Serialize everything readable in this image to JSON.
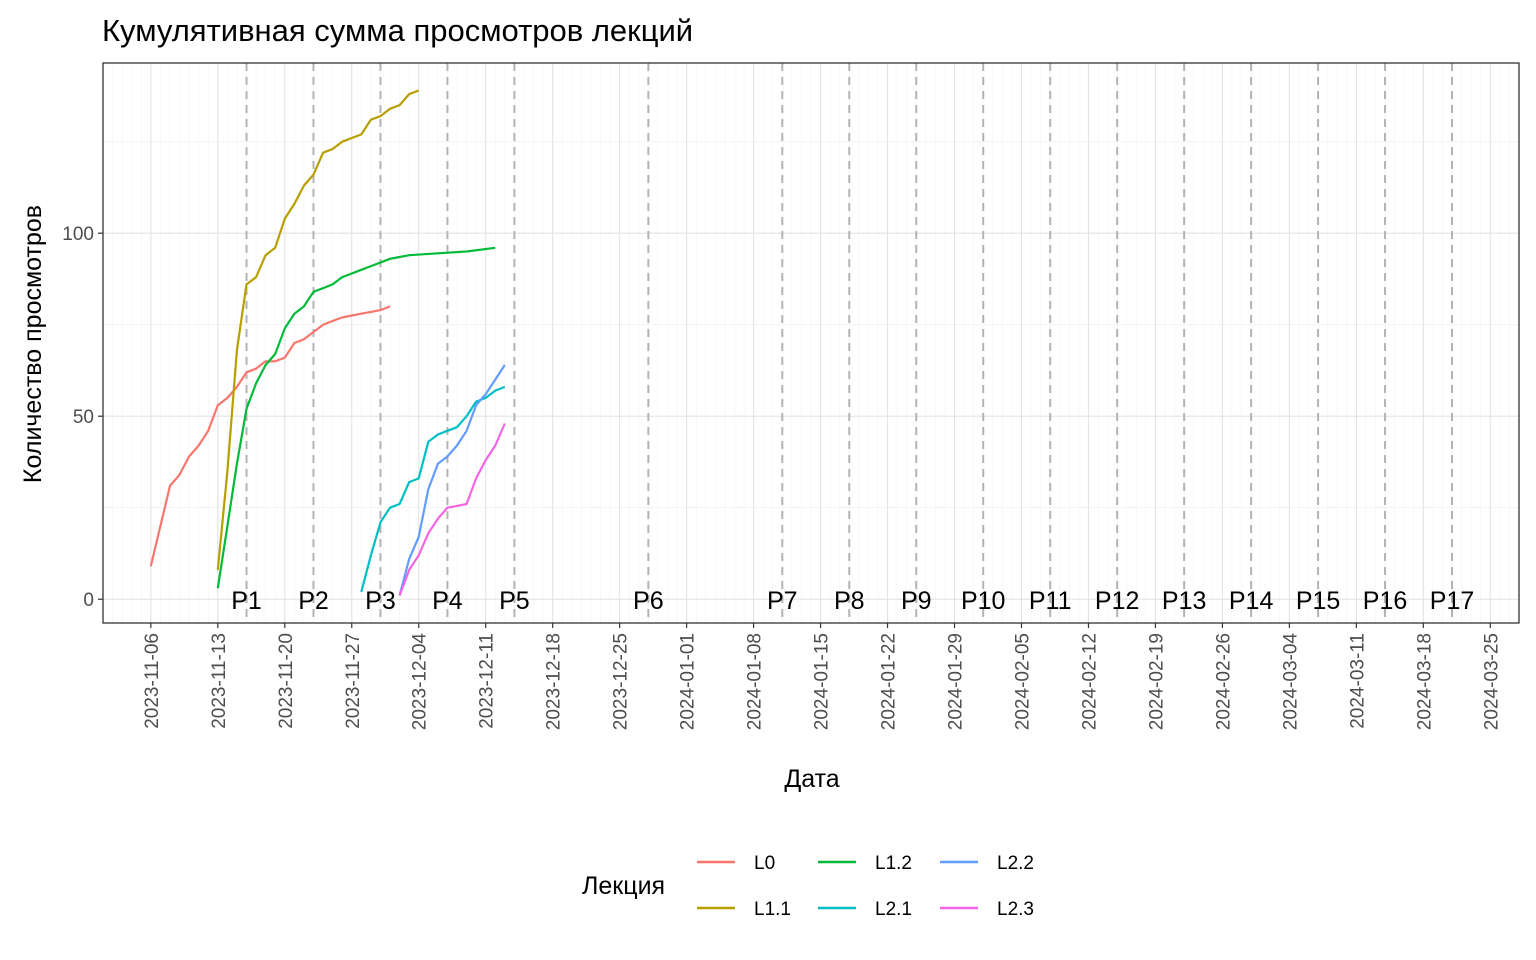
{
  "chart_data": {
    "type": "line",
    "title": "Кумулятивная сумма просмотров лекций",
    "xlabel": "Дата",
    "ylabel": "Количество просмотров",
    "x_range": [
      "2023-11-01",
      "2024-03-28"
    ],
    "ylim": [
      -6.5,
      146.5
    ],
    "y_ticks": [
      0,
      50,
      100
    ],
    "y_minor_ticks": [
      25,
      75,
      125
    ],
    "x_ticks": [
      "2023-11-06",
      "2023-11-13",
      "2023-11-20",
      "2023-11-27",
      "2023-12-04",
      "2023-12-11",
      "2023-12-18",
      "2023-12-25",
      "2024-01-01",
      "2024-01-08",
      "2024-01-15",
      "2024-01-22",
      "2024-01-29",
      "2024-02-05",
      "2024-02-12",
      "2024-02-19",
      "2024-02-26",
      "2024-03-04",
      "2024-03-11",
      "2024-03-18",
      "2024-03-25"
    ],
    "grid": true,
    "legend": {
      "title": "Лекция",
      "position": "bottom"
    },
    "vlines": [
      {
        "label": "P1",
        "date": "2023-11-16"
      },
      {
        "label": "P2",
        "date": "2023-11-23"
      },
      {
        "label": "P3",
        "date": "2023-11-30"
      },
      {
        "label": "P4",
        "date": "2023-12-07"
      },
      {
        "label": "P5",
        "date": "2023-12-14"
      },
      {
        "label": "P6",
        "date": "2023-12-28"
      },
      {
        "label": "P7",
        "date": "2024-01-11"
      },
      {
        "label": "P8",
        "date": "2024-01-18"
      },
      {
        "label": "P9",
        "date": "2024-01-25"
      },
      {
        "label": "P10",
        "date": "2024-02-01"
      },
      {
        "label": "P11",
        "date": "2024-02-08"
      },
      {
        "label": "P12",
        "date": "2024-02-15"
      },
      {
        "label": "P13",
        "date": "2024-02-22"
      },
      {
        "label": "P14",
        "date": "2024-02-29"
      },
      {
        "label": "P15",
        "date": "2024-03-07"
      },
      {
        "label": "P16",
        "date": "2024-03-14"
      },
      {
        "label": "P17",
        "date": "2024-03-21"
      }
    ],
    "series": [
      {
        "name": "L0",
        "color": "#F8766D",
        "x": [
          "2023-11-06",
          "2023-11-08",
          "2023-11-09",
          "2023-11-10",
          "2023-11-11",
          "2023-11-12",
          "2023-11-13",
          "2023-11-14",
          "2023-11-15",
          "2023-11-16",
          "2023-11-17",
          "2023-11-18",
          "2023-11-19",
          "2023-11-20",
          "2023-11-21",
          "2023-11-22",
          "2023-11-23",
          "2023-11-24",
          "2023-11-25",
          "2023-11-26",
          "2023-11-27",
          "2023-11-28",
          "2023-11-29",
          "2023-11-30",
          "2023-12-01"
        ],
        "y": [
          9,
          31,
          34,
          39,
          42,
          46,
          53,
          55,
          58,
          62,
          63,
          65,
          65,
          66,
          70,
          71,
          73,
          75,
          76,
          77,
          77.5,
          78,
          78.5,
          79,
          80
        ]
      },
      {
        "name": "L1.1",
        "color": "#B79F00",
        "x": [
          "2023-11-13",
          "2023-11-14",
          "2023-11-15",
          "2023-11-16",
          "2023-11-17",
          "2023-11-18",
          "2023-11-19",
          "2023-11-20",
          "2023-11-21",
          "2023-11-22",
          "2023-11-23",
          "2023-11-24",
          "2023-11-25",
          "2023-11-26",
          "2023-11-27",
          "2023-11-28",
          "2023-11-29",
          "2023-11-30",
          "2023-12-01",
          "2023-12-02",
          "2023-12-03",
          "2023-12-04"
        ],
        "y": [
          8,
          35,
          68,
          86,
          88,
          94,
          96,
          104,
          108,
          113,
          116,
          122,
          123,
          125,
          126,
          127,
          131,
          132,
          134,
          135,
          138,
          139
        ]
      },
      {
        "name": "L1.2",
        "color": "#00BA38",
        "x": [
          "2023-11-13",
          "2023-11-14",
          "2023-11-15",
          "2023-11-16",
          "2023-11-17",
          "2023-11-18",
          "2023-11-19",
          "2023-11-20",
          "2023-11-21",
          "2023-11-22",
          "2023-11-23",
          "2023-11-24",
          "2023-11-25",
          "2023-11-26",
          "2023-11-27",
          "2023-11-28",
          "2023-11-29",
          "2023-11-30",
          "2023-12-01",
          "2023-12-02",
          "2023-12-03",
          "2023-12-06",
          "2023-12-09",
          "2023-12-12"
        ],
        "y": [
          3,
          20,
          37,
          52,
          59,
          64,
          67,
          74,
          78,
          80,
          84,
          85,
          86,
          88,
          89,
          90,
          91,
          92,
          93,
          93.5,
          94,
          94.5,
          95,
          96
        ]
      },
      {
        "name": "L2.1",
        "color": "#00BFC4",
        "x": [
          "2023-11-28",
          "2023-11-29",
          "2023-11-30",
          "2023-12-01",
          "2023-12-02",
          "2023-12-03",
          "2023-12-04",
          "2023-12-05",
          "2023-12-06",
          "2023-12-07",
          "2023-12-08",
          "2023-12-09",
          "2023-12-10",
          "2023-12-11",
          "2023-12-12",
          "2023-12-13"
        ],
        "y": [
          2,
          12,
          21,
          25,
          26,
          32,
          33,
          43,
          45,
          46,
          47,
          50,
          54,
          55,
          57,
          58
        ]
      },
      {
        "name": "L2.2",
        "color": "#619CFF",
        "x": [
          "2023-12-02",
          "2023-12-03",
          "2023-12-04",
          "2023-12-05",
          "2023-12-06",
          "2023-12-07",
          "2023-12-08",
          "2023-12-09",
          "2023-12-10",
          "2023-12-11",
          "2023-12-12",
          "2023-12-13"
        ],
        "y": [
          1,
          11,
          17,
          30,
          37,
          39,
          42,
          46,
          53,
          56,
          60,
          64
        ]
      },
      {
        "name": "L2.3",
        "color": "#F564E3",
        "x": [
          "2023-12-02",
          "2023-12-03",
          "2023-12-04",
          "2023-12-05",
          "2023-12-06",
          "2023-12-07",
          "2023-12-08",
          "2023-12-09",
          "2023-12-10",
          "2023-12-11",
          "2023-12-12",
          "2023-12-13"
        ],
        "y": [
          1,
          8,
          12,
          18,
          22,
          25,
          25.5,
          26,
          33,
          38,
          42,
          48
        ]
      }
    ]
  }
}
